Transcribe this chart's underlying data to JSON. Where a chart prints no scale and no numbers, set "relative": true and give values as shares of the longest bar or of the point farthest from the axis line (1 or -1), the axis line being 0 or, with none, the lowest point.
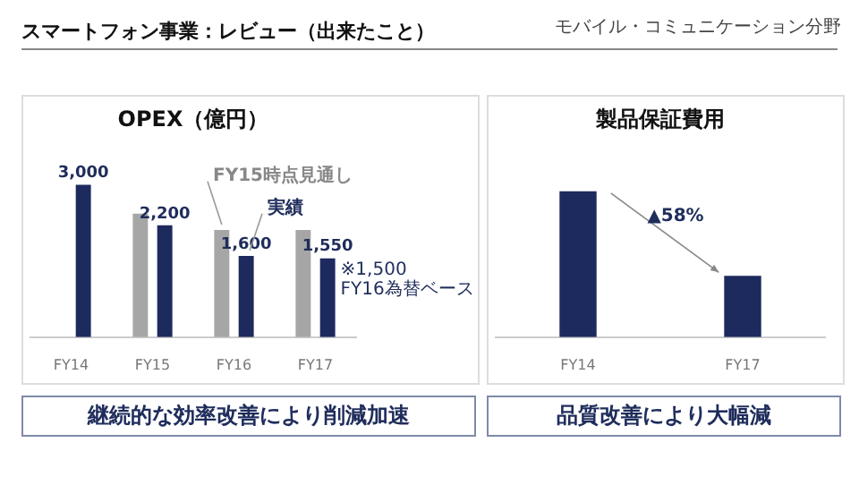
{
  "chart_data": [
    {
      "type": "bar",
      "title": "OPEX（億円）",
      "categories": [
        "FY14",
        "FY15",
        "FY16",
        "FY17"
      ],
      "series": [
        {
          "name": "FY15時点見通し",
          "color": "#a6a6a6",
          "values": [
            null,
            2430,
            2110,
            2110
          ]
        },
        {
          "name": "実績",
          "color": "#1c2a5e",
          "values": [
            3000,
            2200,
            1600,
            1550
          ],
          "value_labels": [
            "3,000",
            "2,200",
            "1,600",
            "1,550"
          ]
        }
      ],
      "tick_labels": "x",
      "annotations": [
        "スマートフォン事業：レビュー（出来たこと）",
        "モバイル・コミュニケーション分野",
        {
          "text": "※1,500\nFY16為替ベース",
          "x": "FY17",
          "y": 1500
        },
        "継続的な効率改善により削減加速"
      ]
    },
    {
      "type": "bar",
      "title": "製品保証費用",
      "categories": [
        "FY14",
        "FY17"
      ],
      "values": [
        1,
        0.42
      ],
      "color": "#1c2a5e",
      "relative": true,
      "annotations": [
        "▲58%",
        "品質改善により大幅減"
      ]
    }
  ]
}
